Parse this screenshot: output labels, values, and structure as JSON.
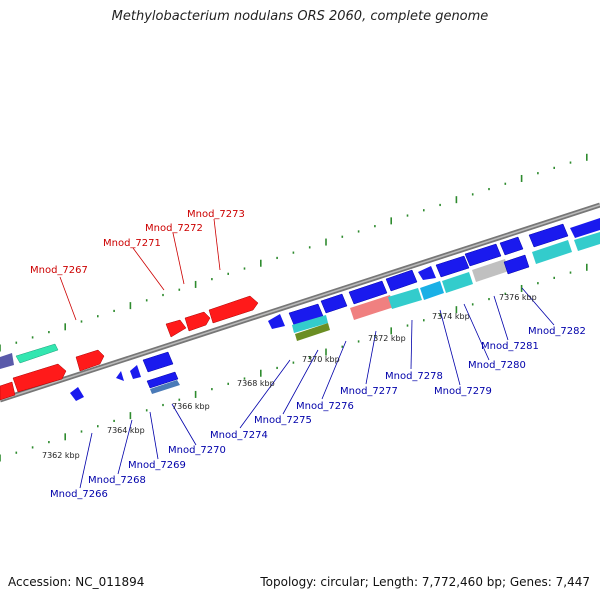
{
  "title": "Methylobacterium nodulans ORS 2060, complete genome",
  "footer": {
    "accession": "Accession: NC_011894",
    "summary": "Topology: circular; Length: 7,772,460 bp; Genes: 7,447"
  },
  "scale_labels": [
    "7362 kbp",
    "7364 kbp",
    "7366 kbp",
    "7368 kbp",
    "7370 kbp",
    "7372 kbp",
    "7374 kbp",
    "7376 kbp"
  ],
  "gene_labels_forward": [
    "Mnod_7267",
    "Mnod_7271",
    "Mnod_7272",
    "Mnod_7273"
  ],
  "gene_labels_reverse": [
    "Mnod_7266",
    "Mnod_7268",
    "Mnod_7269",
    "Mnod_7270",
    "Mnod_7274",
    "Mnod_7275",
    "Mnod_7276",
    "Mnod_7277",
    "Mnod_7278",
    "Mnod_7279",
    "Mnod_7280",
    "Mnod_7281",
    "Mnod_7282"
  ],
  "colors": {
    "forward_gene": "#ff1a1a",
    "reverse_gene": "#1a1aee",
    "backbone": "#8c8c8c",
    "tick": "#2e8b2e",
    "forward_label": "#cc0000",
    "reverse_label": "#0000aa"
  }
}
